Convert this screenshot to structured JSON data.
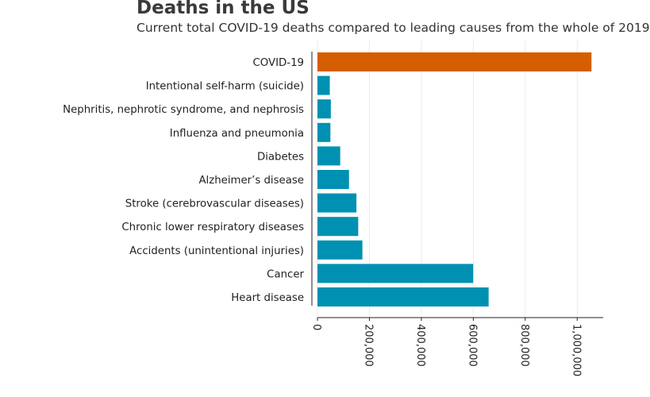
{
  "header": {
    "title": "Deaths in the US",
    "subtitle": "Current total COVID-19 deaths compared to leading causes from the whole of 2019"
  },
  "chart_data": {
    "type": "bar",
    "orientation": "horizontal",
    "title": "Deaths in the US",
    "subtitle": "Current total COVID-19 deaths compared to leading causes from the whole of 2019",
    "xlabel": "",
    "ylabel": "",
    "xlim": [
      0,
      1100000
    ],
    "xticks": [
      0,
      200000,
      400000,
      600000,
      800000,
      1000000
    ],
    "xtick_labels": [
      "0",
      "200,000",
      "400,000",
      "600,000",
      "800,000",
      "1,000,000"
    ],
    "grid": "vertical",
    "categories": [
      "COVID-19",
      "Intentional self-harm (suicide)",
      "Nephritis, nephrotic syndrome, and nephrosis",
      "Influenza and pneumonia",
      "Diabetes",
      "Alzheimer’s disease",
      "Stroke (cerebrovascular diseases)",
      "Chronic lower respiratory diseases",
      "Accidents (unintentional injuries)",
      "Cancer",
      "Heart disease"
    ],
    "values": [
      1055000,
      47500,
      51500,
      49800,
      87600,
      121500,
      150000,
      156900,
      173000,
      599600,
      659000
    ],
    "colors": {
      "highlight": "#d55e00",
      "default": "#0091b2"
    },
    "highlight_index": 0
  }
}
